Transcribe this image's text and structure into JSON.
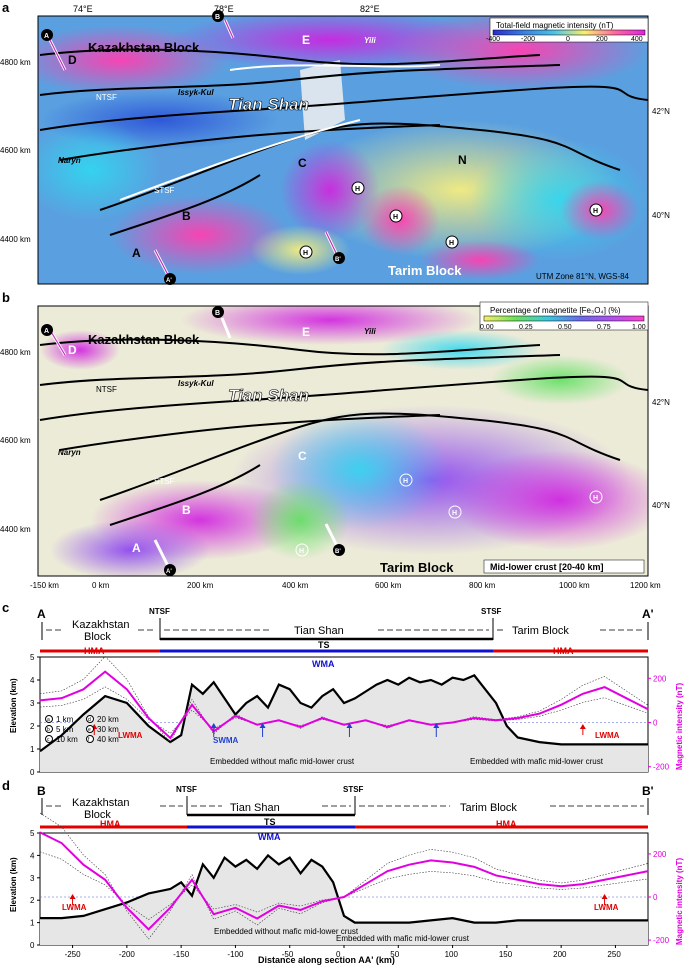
{
  "panels": {
    "a": {
      "letter": "a",
      "colorbar_title": "Total-field magnetic intensity (nT)",
      "colorbar_ticks": [
        "-400",
        "-200",
        "0",
        "200",
        "400"
      ],
      "colorbar_stops": [
        "#2a2ad0",
        "#3a7fe0",
        "#4bc3e8",
        "#f8f070",
        "#ff6aa0",
        "#e020e0"
      ],
      "top_ticks": [
        "74°E",
        "78°E",
        "82°E"
      ],
      "left_ticks": [
        "4800 km",
        "4600 km",
        "4400 km"
      ],
      "right_ticks": [
        "42°N",
        "40°N"
      ],
      "projection": "UTM Zone 81°N, WGS-84",
      "labels": {
        "kazakhstan": "Kazakhstan Block",
        "tianshan": "Tian Shan",
        "tarim": "Tarim Block",
        "ntsf": "NTSF",
        "stsf": "STSF",
        "issyk": "Issyk-Kul",
        "naryn": "Naryn",
        "yili": "Yili",
        "A": "A",
        "B": "B",
        "C": "C",
        "D": "D",
        "E": "E",
        "N": "N",
        "H": "H",
        "pA": "A",
        "pA2": "A'",
        "pB": "B",
        "pB2": "B'"
      }
    },
    "b": {
      "letter": "b",
      "colorbar_title": "Percentage of magnetite [Fe₃O₄] (%)",
      "colorbar_ticks": [
        "0.00",
        "0.25",
        "0.50",
        "0.75",
        "1.00"
      ],
      "colorbar_stops": [
        "#f7f06a",
        "#6ae05a",
        "#3ac8e0",
        "#6a6ae8",
        "#b050f0",
        "#ff40d0"
      ],
      "left_ticks": [
        "4800 km",
        "4600 km",
        "4400 km"
      ],
      "right_ticks": [
        "42°N",
        "40°N"
      ],
      "bottom_ticks": [
        "-150 km",
        "0 km",
        "200 km",
        "400 km",
        "600 km",
        "800 km",
        "1000 km",
        "1200 km"
      ],
      "depth_label": "Mid-lower crust [20-40 km]"
    },
    "c": {
      "letter": "c",
      "start": "A",
      "end": "A'",
      "ntsf": "NTSF",
      "stsf": "STSF",
      "block_left_1": "Kazakhstan",
      "block_left_2": "Block",
      "block_mid": "Tian Shan",
      "block_right": "Tarim Block",
      "ts": "TS",
      "hma": "HMA",
      "wma": "WMA",
      "lwma": "LWMA",
      "swma": "SWMA",
      "embed_left": "Embedded without mafic mid-lower crust",
      "embed_right": "Embedded with mafic mid-lower crust",
      "ylabel_left": "Elevation (km)",
      "ylabel_right": "Magnetic intensity (nT)",
      "ylim_left": [
        0,
        5
      ],
      "ylim_right": [
        -200,
        200
      ],
      "yticks_left": [
        "0",
        "1",
        "2",
        "3",
        "4",
        "5"
      ],
      "yticks_right": [
        "-200",
        "0",
        "200"
      ],
      "legend": [
        "1 km",
        "5 km",
        "10 km",
        "20 km",
        "30 km",
        "40 km"
      ],
      "legend_marks": [
        "a",
        "b",
        "c",
        "d",
        "e",
        "f"
      ]
    },
    "d": {
      "letter": "d",
      "start": "B",
      "end": "B'",
      "ntsf": "NTSF",
      "stsf": "STSF",
      "block_left_1": "Kazakhstan",
      "block_left_2": "Block",
      "block_mid": "Tian Shan",
      "block_right": "Tarim Block",
      "ts": "TS",
      "hma": "HMA",
      "wma": "WMA",
      "lwma": "LWMA",
      "embed_left": "Embedded without mafic mid-lower crust",
      "embed_right": "Embedded with mafic mid-lower crust",
      "ylabel_left": "Elevation (km)",
      "ylabel_right": "Magnetic intensity (nT)",
      "yticks_left": [
        "0",
        "1",
        "2",
        "3",
        "4",
        "5"
      ],
      "yticks_right": [
        "-200",
        "0",
        "200"
      ],
      "xticks": [
        "-250",
        "-200",
        "-150",
        "-100",
        "-50",
        "0",
        "50",
        "100",
        "150",
        "200",
        "250"
      ],
      "xlabel": "Distance along section AA' (km)"
    }
  },
  "colors": {
    "hma": "#e00000",
    "wma": "#1010d0",
    "magnetic": "#e000e0",
    "lwma_arrow": "#e00000",
    "swma_arrow": "#2040d0"
  },
  "chart_data": [
    {
      "type": "line",
      "panel": "c",
      "xlabel": "",
      "ylabel": "Elevation (km)",
      "ylim": [
        0,
        5
      ],
      "series": [
        {
          "name": "Elevation",
          "x": [
            -280,
            -260,
            -240,
            -220,
            -200,
            -180,
            -160,
            -150,
            -140,
            -130,
            -120,
            -110,
            -100,
            -90,
            -80,
            -70,
            -60,
            -50,
            -40,
            -30,
            -20,
            -10,
            0,
            10,
            20,
            30,
            40,
            50,
            60,
            70,
            80,
            90,
            100,
            110,
            120,
            130,
            140,
            150,
            160,
            180,
            200,
            220,
            240,
            260,
            280
          ],
          "values": [
            0.9,
            1.6,
            2.5,
            3.3,
            3.0,
            2.0,
            1.3,
            1.6,
            3.8,
            3.4,
            3.9,
            3.2,
            2.5,
            3.0,
            3.3,
            2.8,
            3.8,
            3.6,
            3.0,
            2.8,
            3.3,
            3.6,
            3.0,
            3.2,
            3.5,
            3.8,
            4.0,
            3.8,
            4.1,
            3.9,
            4.0,
            3.8,
            4.1,
            4.0,
            4.2,
            3.6,
            3.0,
            2.0,
            1.5,
            1.3,
            1.2,
            1.2,
            1.2,
            1.2,
            1.2
          ]
        },
        {
          "name": "Magnetic",
          "x": [
            -280,
            -260,
            -240,
            -220,
            -200,
            -180,
            -160,
            -140,
            -120,
            -100,
            -80,
            -60,
            -40,
            -20,
            0,
            20,
            40,
            60,
            80,
            100,
            120,
            140,
            160,
            180,
            200,
            220,
            240,
            260,
            280
          ],
          "values": [
            100,
            110,
            150,
            230,
            150,
            20,
            -70,
            80,
            -40,
            30,
            -10,
            10,
            -20,
            20,
            -10,
            10,
            -20,
            10,
            -10,
            0,
            20,
            10,
            20,
            40,
            80,
            130,
            160,
            110,
            60
          ]
        }
      ]
    },
    {
      "type": "line",
      "panel": "d",
      "xlabel": "Distance along section AA' (km)",
      "ylabel": "Elevation (km)",
      "ylim": [
        0,
        5
      ],
      "x_range": [
        -280,
        280
      ],
      "series": [
        {
          "name": "Elevation",
          "x": [
            -280,
            -260,
            -240,
            -220,
            -200,
            -180,
            -160,
            -150,
            -140,
            -130,
            -120,
            -110,
            -100,
            -90,
            -80,
            -70,
            -60,
            -50,
            -40,
            -30,
            -20,
            -10,
            0,
            10,
            20,
            40,
            60,
            80,
            100,
            120,
            140,
            160,
            180,
            200,
            220,
            240,
            260,
            280
          ],
          "values": [
            1.2,
            1.2,
            1.3,
            1.6,
            1.9,
            2.3,
            2.5,
            2.8,
            2.2,
            3.6,
            3.0,
            3.9,
            3.5,
            3.8,
            3.4,
            4.0,
            3.6,
            3.9,
            3.2,
            3.8,
            3.5,
            2.8,
            1.3,
            1.0,
            1.0,
            1.0,
            1.0,
            1.1,
            1.2,
            1.0,
            1.0,
            1.1,
            1.1,
            1.1,
            1.1,
            1.1,
            1.1,
            1.1
          ]
        },
        {
          "name": "Magnetic",
          "x": [
            -280,
            -260,
            -240,
            -220,
            -200,
            -180,
            -160,
            -140,
            -120,
            -100,
            -80,
            -60,
            -40,
            -20,
            0,
            20,
            40,
            60,
            80,
            100,
            120,
            140,
            160,
            180,
            200,
            220,
            240,
            260,
            280
          ],
          "values": [
            300,
            250,
            150,
            80,
            -50,
            -150,
            -50,
            80,
            -80,
            -50,
            -100,
            -40,
            -60,
            -20,
            0,
            60,
            120,
            150,
            170,
            160,
            140,
            100,
            80,
            60,
            50,
            60,
            80,
            100,
            120
          ]
        }
      ]
    }
  ]
}
